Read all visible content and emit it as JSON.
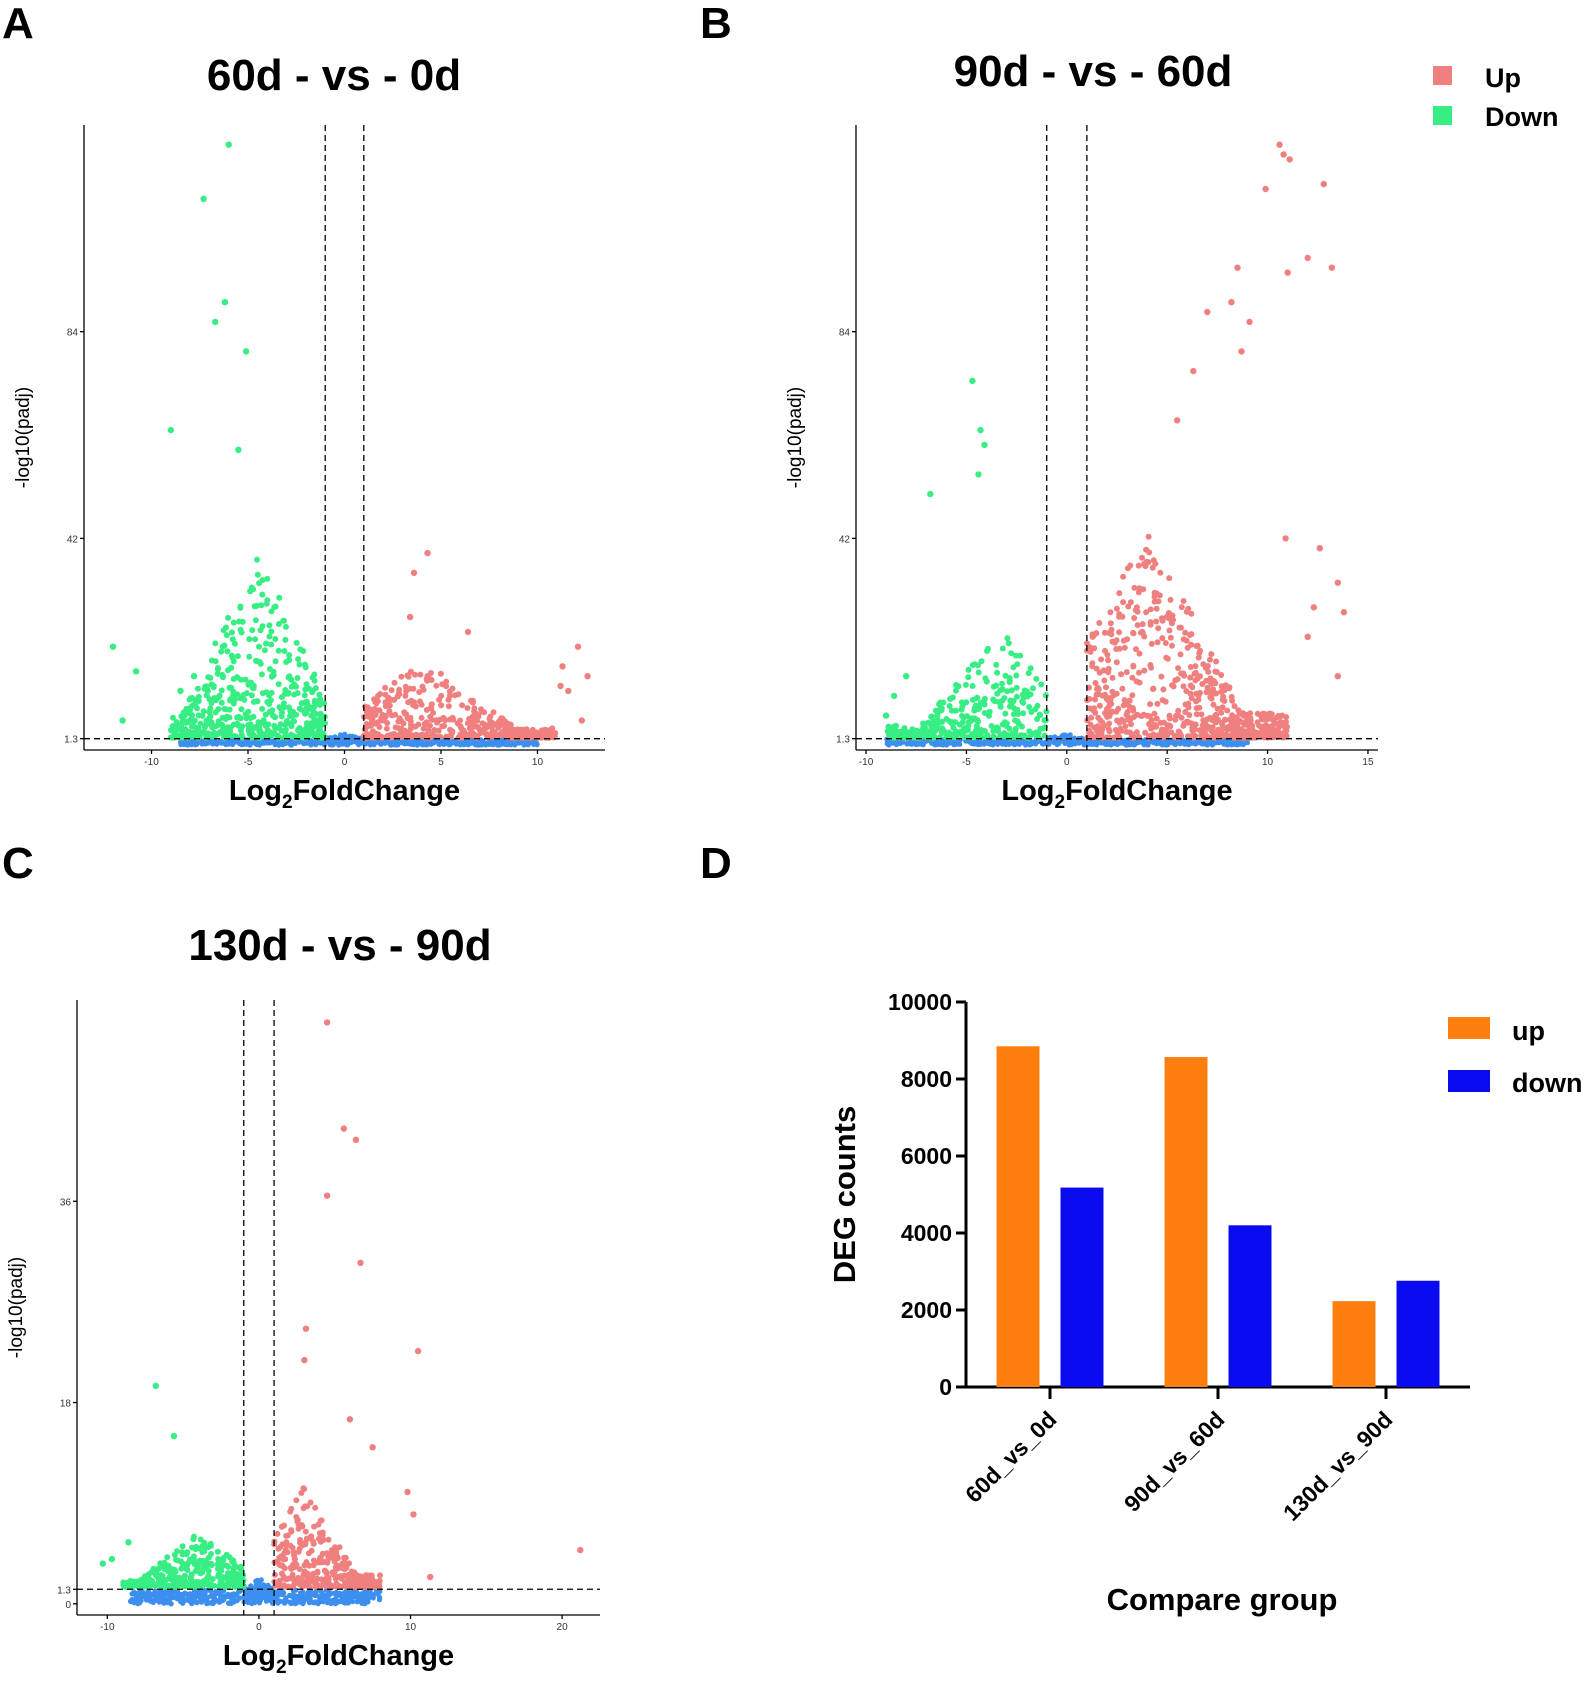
{
  "colors": {
    "up": "#F08080",
    "down": "#38EE84",
    "ns": "#3C8FEF",
    "bar_up": "#FF7F0E",
    "bar_down": "#0B0BF2"
  },
  "legend": {
    "up": "Up",
    "down": "Down"
  },
  "chart_data": [
    {
      "panel": "A",
      "type": "scatter",
      "title": "60d - vs - 0d",
      "xlabel_main": "Log",
      "xlabel_sub": "2",
      "xlabel_rest": "FoldChange",
      "ylabel": "-log10(padj)",
      "xlim": [
        -13.5,
        13.5
      ],
      "ylim": [
        -1,
        126
      ],
      "xticks": [
        -10,
        -5,
        0,
        5,
        10
      ],
      "yticks": [
        {
          "v": 1.3,
          "label": "1.3"
        },
        {
          "v": 42,
          "label": "42"
        },
        {
          "v": 84,
          "label": "84"
        }
      ],
      "fc_threshold": 1,
      "padj_threshold": 1.3,
      "down": {
        "count": 520,
        "xmin": -9,
        "xmax": -1,
        "ymax": 38,
        "peak": -4.5
      },
      "up": {
        "count": 420,
        "xmin": 1,
        "xmax": 11,
        "ymax": 16,
        "peak": 4
      },
      "ns": {
        "count": 600,
        "xmin": -8.5,
        "xmax": 10
      },
      "outliers_down": [
        [
          -6,
          122
        ],
        [
          -7.3,
          111
        ],
        [
          -6.2,
          90
        ],
        [
          -6.7,
          86
        ],
        [
          -5.1,
          80
        ],
        [
          -9,
          64
        ],
        [
          -5.5,
          60
        ],
        [
          -12,
          20
        ],
        [
          -10.8,
          15
        ],
        [
          -11.5,
          5
        ],
        [
          -7.8,
          14
        ],
        [
          -8.5,
          11
        ]
      ],
      "outliers_up": [
        [
          4.3,
          39
        ],
        [
          3.6,
          35
        ],
        [
          3.4,
          26
        ],
        [
          6.4,
          23
        ],
        [
          12.1,
          20
        ],
        [
          12.6,
          14
        ],
        [
          11.3,
          16
        ],
        [
          11.6,
          11
        ],
        [
          12.3,
          5
        ],
        [
          11.2,
          12
        ]
      ]
    },
    {
      "panel": "B",
      "type": "scatter",
      "title": "90d - vs - 60d",
      "xlabel_main": "Log",
      "xlabel_sub": "2",
      "xlabel_rest": "FoldChange",
      "ylabel": "-log10(padj)",
      "xlim": [
        -10.5,
        15.5
      ],
      "ylim": [
        -1,
        126
      ],
      "xticks": [
        -10,
        -5,
        0,
        5,
        10,
        15
      ],
      "yticks": [
        {
          "v": 1.3,
          "label": "1.3"
        },
        {
          "v": 42,
          "label": "42"
        },
        {
          "v": 84,
          "label": "84"
        }
      ],
      "fc_threshold": 1,
      "padj_threshold": 1.3,
      "down": {
        "count": 340,
        "xmin": -9,
        "xmax": -1,
        "ymax": 22,
        "peak": -3.3
      },
      "up": {
        "count": 650,
        "xmin": 1,
        "xmax": 11,
        "ymax": 42,
        "peak": 4
      },
      "ns": {
        "count": 550,
        "xmin": -9,
        "xmax": 9
      },
      "outliers_down": [
        [
          -4.7,
          74
        ],
        [
          -4.3,
          64
        ],
        [
          -4.1,
          61
        ],
        [
          -6.8,
          51
        ],
        [
          -4.4,
          55
        ],
        [
          -9,
          6
        ],
        [
          -8.6,
          10
        ],
        [
          -8,
          14
        ]
      ],
      "outliers_up": [
        [
          10.6,
          122
        ],
        [
          10.8,
          120
        ],
        [
          11.1,
          119
        ],
        [
          12.8,
          114
        ],
        [
          9.9,
          113
        ],
        [
          12,
          99
        ],
        [
          13.2,
          97
        ],
        [
          11,
          96
        ],
        [
          8.5,
          97
        ],
        [
          8.2,
          90
        ],
        [
          9.1,
          86
        ],
        [
          8.7,
          80
        ],
        [
          7,
          88
        ],
        [
          5.5,
          66
        ],
        [
          6.3,
          76
        ],
        [
          12.6,
          40
        ],
        [
          13.5,
          33
        ],
        [
          13.8,
          27
        ],
        [
          10.9,
          42
        ],
        [
          13.5,
          14
        ],
        [
          12.3,
          28
        ],
        [
          12,
          22
        ]
      ]
    },
    {
      "panel": "C",
      "type": "scatter",
      "title": "130d - vs - 90d",
      "xlabel_main": "Log",
      "xlabel_sub": "2",
      "xlabel_rest": "FoldChange",
      "ylabel": "-log10(padj)",
      "xlim": [
        -12,
        22.5
      ],
      "ylim": [
        -1,
        54
      ],
      "xticks": [
        -10,
        0,
        10,
        20
      ],
      "yticks": [
        {
          "v": 0,
          "label": "0"
        },
        {
          "v": 1.3,
          "label": "1.3"
        },
        {
          "v": 18,
          "label": "18"
        },
        {
          "v": 36,
          "label": "36"
        }
      ],
      "fc_threshold": 1,
      "padj_threshold": 1.3,
      "down": {
        "count": 330,
        "xmin": -9,
        "xmax": -1,
        "ymax": 5,
        "peak": -4
      },
      "up": {
        "count": 360,
        "xmin": 1,
        "xmax": 8,
        "ymax": 9,
        "peak": 3
      },
      "ns": {
        "count": 500,
        "xmin": -8.5,
        "xmax": 8
      },
      "outliers_down": [
        [
          -6.8,
          19.5
        ],
        [
          -5.6,
          15
        ],
        [
          -10.3,
          3.6
        ],
        [
          -9.7,
          4
        ],
        [
          -8.6,
          5.5
        ]
      ],
      "outliers_up": [
        [
          4.5,
          52
        ],
        [
          5.6,
          42.5
        ],
        [
          6.4,
          41.5
        ],
        [
          4.5,
          36.5
        ],
        [
          6.7,
          30.5
        ],
        [
          10.5,
          22.6
        ],
        [
          3.1,
          24.6
        ],
        [
          3,
          21.8
        ],
        [
          9.8,
          10
        ],
        [
          10.2,
          8
        ],
        [
          21.2,
          4.8
        ],
        [
          11.3,
          2.4
        ],
        [
          7.5,
          14
        ],
        [
          6,
          16.5
        ]
      ]
    },
    {
      "panel": "D",
      "type": "bar",
      "ylabel": "DEG counts",
      "xlabel": "Compare group",
      "categories": [
        "60d_vs_0d",
        "90d_vs_60d",
        "130d_vs_90d"
      ],
      "series": [
        {
          "name": "up",
          "values": [
            8850,
            8570,
            2230
          ]
        },
        {
          "name": "down",
          "values": [
            5180,
            4200,
            2760
          ]
        }
      ],
      "ylim": [
        0,
        10000
      ],
      "yticks": [
        0,
        2000,
        4000,
        6000,
        8000,
        10000
      ]
    }
  ],
  "panel_letters": [
    "A",
    "B",
    "C",
    "D"
  ]
}
